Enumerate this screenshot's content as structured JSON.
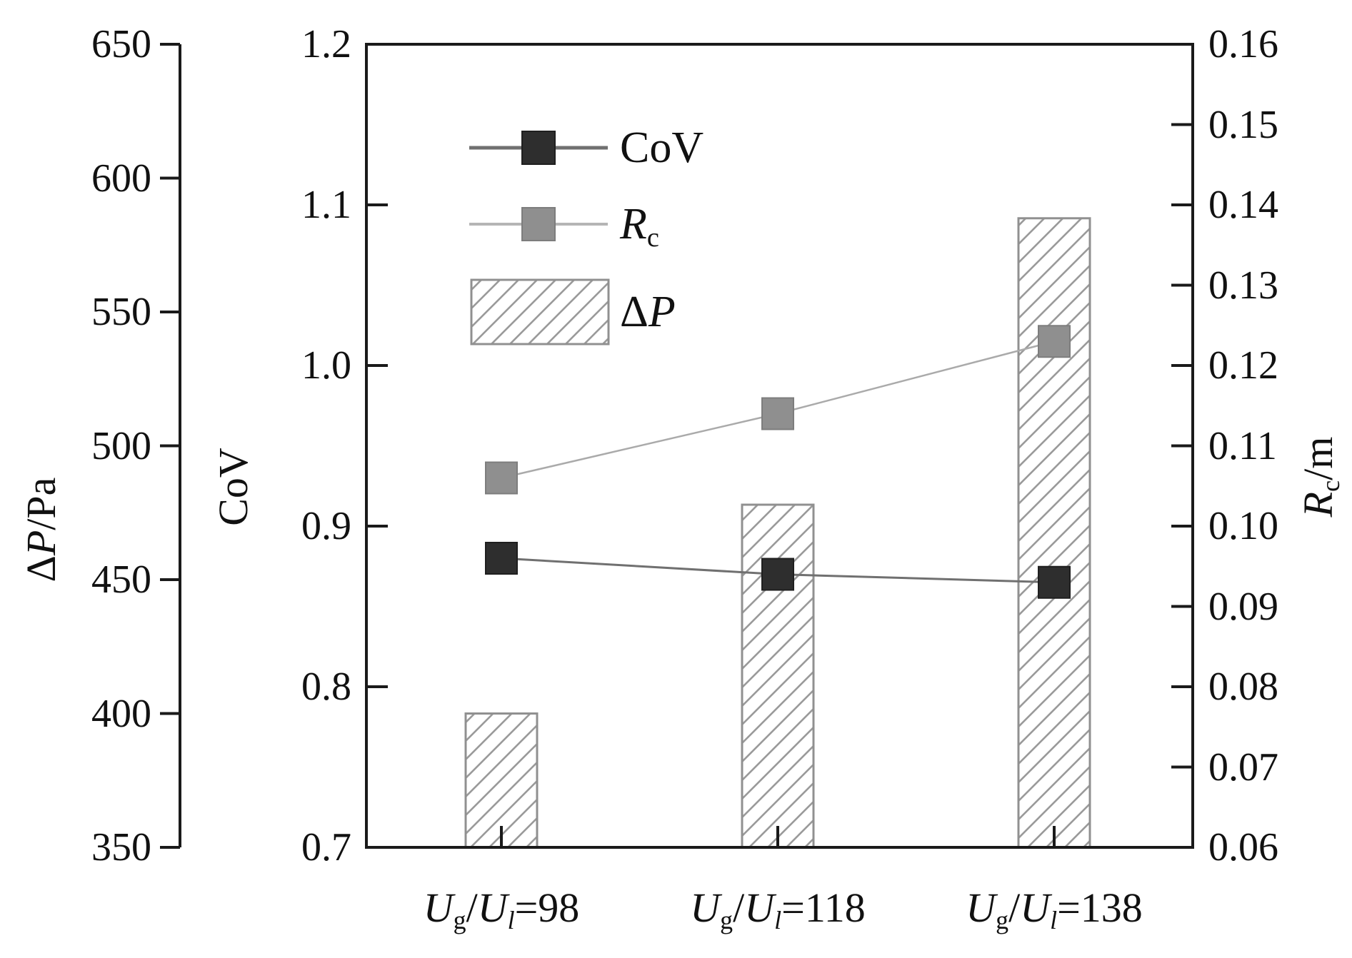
{
  "chart_data": {
    "type": "bar",
    "subtype": "bar+line combo, three independent y-axes",
    "title": "",
    "categories": [
      "Ug/Ul=98",
      "Ug/Ul=118",
      "Ug/Ul=138"
    ],
    "categories_rich": [
      [
        {
          "t": "U",
          "i": true
        },
        {
          "t": "g",
          "sub": true
        },
        {
          "t": "/"
        },
        {
          "t": "U",
          "i": true
        },
        {
          "t": "l",
          "i": true,
          "sub": true
        },
        {
          "t": "=98"
        }
      ],
      [
        {
          "t": "U",
          "i": true
        },
        {
          "t": "g",
          "sub": true
        },
        {
          "t": "/"
        },
        {
          "t": "U",
          "i": true
        },
        {
          "t": "l",
          "i": true,
          "sub": true
        },
        {
          "t": "=118"
        }
      ],
      [
        {
          "t": "U",
          "i": true
        },
        {
          "t": "g",
          "sub": true
        },
        {
          "t": "/"
        },
        {
          "t": "U",
          "i": true
        },
        {
          "t": "l",
          "i": true,
          "sub": true
        },
        {
          "t": "=138"
        }
      ]
    ],
    "axes": {
      "dp": {
        "title_plain": "ΔP/Pa",
        "title": [
          {
            "t": "Δ"
          },
          {
            "t": "P",
            "i": true
          },
          {
            "t": "/Pa"
          }
        ],
        "min": 350,
        "max": 650,
        "position": "outer-left",
        "ticks": [
          {
            "v": 650,
            "label": "650"
          },
          {
            "v": 600,
            "label": "600"
          },
          {
            "v": 550,
            "label": "550"
          },
          {
            "v": 500,
            "label": "500"
          },
          {
            "v": 450,
            "label": "450"
          },
          {
            "v": 400,
            "label": "400"
          },
          {
            "v": 350,
            "label": "350"
          }
        ]
      },
      "cov": {
        "title_plain": "CoV",
        "title": [
          {
            "t": "CoV"
          }
        ],
        "min": 0.7,
        "max": 1.2,
        "position": "inner-left",
        "ticks": [
          {
            "v": 1.2,
            "label": "1.2"
          },
          {
            "v": 1.1,
            "label": "1.1"
          },
          {
            "v": 1.0,
            "label": "1.0"
          },
          {
            "v": 0.9,
            "label": "0.9"
          },
          {
            "v": 0.8,
            "label": "0.8"
          },
          {
            "v": 0.7,
            "label": "0.7"
          }
        ]
      },
      "rc": {
        "title_plain": "Rc/m",
        "title": [
          {
            "t": "R",
            "i": true
          },
          {
            "t": "c",
            "sub": true
          },
          {
            "t": "/m"
          }
        ],
        "min": 0.06,
        "max": 0.16,
        "position": "right",
        "ticks": [
          {
            "v": 0.16,
            "label": "0.16"
          },
          {
            "v": 0.15,
            "label": "0.15"
          },
          {
            "v": 0.14,
            "label": "0.14"
          },
          {
            "v": 0.13,
            "label": "0.13"
          },
          {
            "v": 0.12,
            "label": "0.12"
          },
          {
            "v": 0.11,
            "label": "0.11"
          },
          {
            "v": 0.1,
            "label": "0.10"
          },
          {
            "v": 0.09,
            "label": "0.09"
          },
          {
            "v": 0.08,
            "label": "0.08"
          },
          {
            "v": 0.07,
            "label": "0.07"
          },
          {
            "v": 0.06,
            "label": "0.06"
          }
        ]
      }
    },
    "series": [
      {
        "name": "CoV",
        "axis": "cov",
        "type": "line",
        "marker": "square",
        "values": [
          0.88,
          0.87,
          0.865
        ],
        "marker_color": "#2e2e2e",
        "marker_edge": "#1f1f1f",
        "line_color": "#707070"
      },
      {
        "name": "Rc",
        "axis": "rc",
        "type": "line",
        "marker": "square",
        "values": [
          0.106,
          0.114,
          0.123
        ],
        "marker_color": "#8f8f8f",
        "marker_edge": "#7d7d7d",
        "line_color": "#aaaaaa"
      },
      {
        "name": "ΔP",
        "axis": "dp",
        "type": "bar",
        "values": [
          400,
          478,
          585
        ],
        "fill": "hatch-diagonal",
        "hatch_color": "#9a9a9a",
        "edge_color": "#909090"
      }
    ],
    "legend": {
      "position": "upper-left-inside",
      "border": false,
      "entries": [
        {
          "key": "cov",
          "label_plain": "CoV",
          "label": [
            {
              "t": "CoV"
            }
          ],
          "swatch": "line-with-dark-square"
        },
        {
          "key": "rc",
          "label_plain": "Rc",
          "label": [
            {
              "t": "R",
              "i": true
            },
            {
              "t": "c",
              "sub": true
            }
          ],
          "swatch": "line-with-gray-square"
        },
        {
          "key": "dp",
          "label_plain": "ΔP",
          "label": [
            {
              "t": "Δ"
            },
            {
              "t": "P",
              "i": true
            }
          ],
          "swatch": "hatched-rectangle"
        }
      ]
    },
    "grid": false,
    "background": "#ffffff",
    "colors": {
      "axis": "#1a1a1a",
      "text": "#111111",
      "cov_marker": "#2e2e2e",
      "rc_marker": "#8f8f8f",
      "cov_line": "#707070",
      "rc_line": "#aaaaaa",
      "bar_edge": "#909090",
      "hatch": "#9a9a9a"
    }
  }
}
